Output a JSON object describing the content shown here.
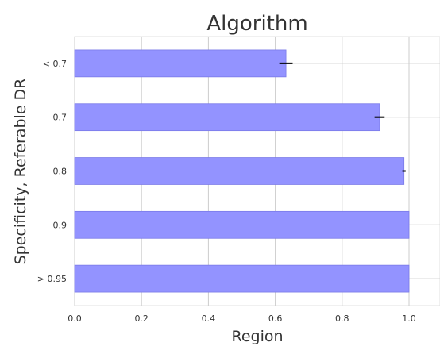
{
  "chart_data": {
    "type": "bar",
    "orientation": "horizontal",
    "title": "Algorithm",
    "xlabel": "Region",
    "ylabel": "Specificity, Referable DR",
    "categories": [
      "< 0.7",
      "0.7",
      "0.8",
      "0.9",
      "> 0.95"
    ],
    "values": [
      0.632,
      0.912,
      0.985,
      1.0,
      1.0
    ],
    "errors": [
      0.02,
      0.015,
      0.005,
      0.0,
      0.0
    ],
    "xlim": [
      0.0,
      1.0
    ],
    "xticks": [
      "0.0",
      "0.2",
      "0.4",
      "0.6",
      "0.8",
      "1.0"
    ],
    "grid": true,
    "colors": {
      "bar": "#9393ff",
      "bar_edge": "#7a7ae8",
      "error": "#000000",
      "grid": "#cccccc",
      "axes": "#e0e0e0"
    }
  }
}
